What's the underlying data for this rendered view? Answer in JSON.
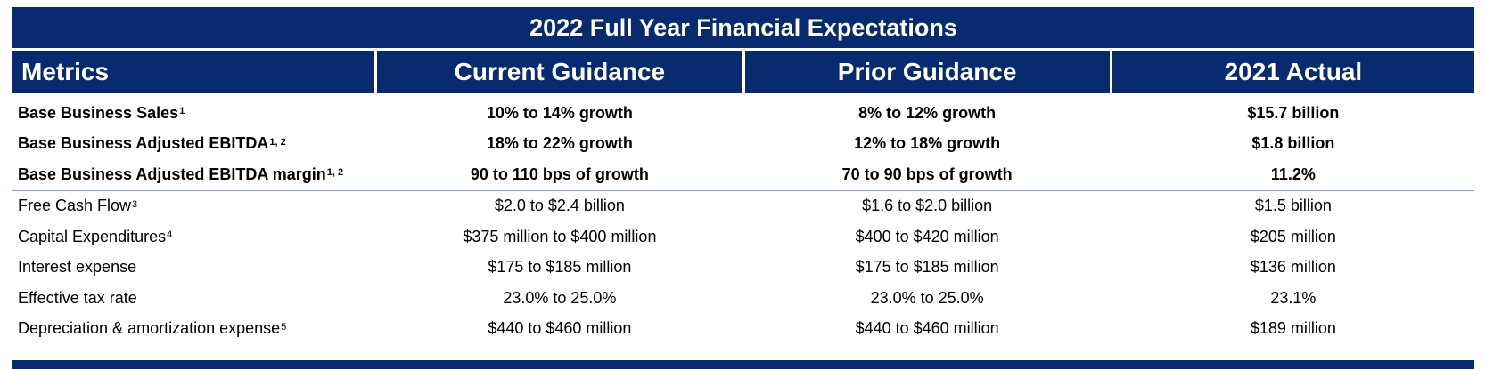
{
  "title": "2022 Full Year Financial Expectations",
  "columns": [
    "Metrics",
    "Current Guidance",
    "Prior Guidance",
    "2021 Actual"
  ],
  "bold_rows": [
    {
      "metric": "Base Business Sales",
      "note": "1",
      "current": "10% to 14% growth",
      "prior": "8% to 12% growth",
      "actual": "$15.7 billion"
    },
    {
      "metric": "Base Business Adjusted EBITDA",
      "note": "1, 2",
      "current": "18% to 22% growth",
      "prior": "12% to 18% growth",
      "actual": "$1.8 billion"
    },
    {
      "metric": "Base Business Adjusted EBITDA margin",
      "note": "1, 2",
      "current": "90 to 110 bps of growth",
      "prior": "70 to 90 bps of growth",
      "actual": "11.2%"
    }
  ],
  "rows": [
    {
      "metric": "Free Cash Flow",
      "note": "3",
      "current": "$2.0 to $2.4 billion",
      "prior": "$1.6 to $2.0 billion",
      "actual": "$1.5 billion"
    },
    {
      "metric": "Capital Expenditures",
      "note": "4",
      "current": "$375 million to $400 million",
      "prior": "$400 to $420 million",
      "actual": "$205 million"
    },
    {
      "metric": "Interest expense",
      "note": "",
      "current": "$175 to $185 million",
      "prior": "$175 to $185 million",
      "actual": "$136 million"
    },
    {
      "metric": "Effective tax rate",
      "note": "",
      "current": "23.0% to 25.0%",
      "prior": "23.0% to 25.0%",
      "actual": "23.1%"
    },
    {
      "metric": "Depreciation & amortization expense",
      "note": "5",
      "current": "$440 to $460 million",
      "prior": "$440 to $460 million",
      "actual": "$189 million"
    }
  ],
  "colors": {
    "header": "#072B6E",
    "divider": "#7F9CCB"
  }
}
